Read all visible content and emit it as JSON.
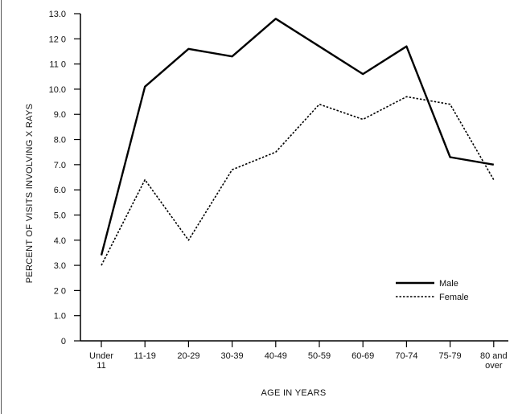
{
  "chart_data": {
    "type": "line",
    "categories": [
      [
        "Under",
        "11"
      ],
      [
        "11-19"
      ],
      [
        "20-29"
      ],
      [
        "30-39"
      ],
      [
        "40-49"
      ],
      [
        "50-59"
      ],
      [
        "60-69"
      ],
      [
        "70-74"
      ],
      [
        "75-79"
      ],
      [
        "80 and",
        "over"
      ]
    ],
    "series": [
      {
        "name": "Male",
        "style": "solid",
        "color": "#000000",
        "values": [
          3.4,
          10.1,
          11.6,
          11.3,
          12.8,
          11.7,
          10.6,
          11.7,
          7.3,
          7.0
        ]
      },
      {
        "name": "Female",
        "style": "dotted",
        "color": "#000000",
        "values": [
          3.0,
          6.4,
          4.0,
          6.8,
          7.5,
          9.4,
          8.8,
          9.7,
          9.4,
          6.4
        ]
      }
    ],
    "xlabel": "AGE IN YEARS",
    "ylabel": "PERCENT OF VISITS INVOLVING X RAYS",
    "ylim": [
      0,
      13
    ],
    "yticks": [
      "0",
      "1.0",
      "2 0",
      "3.0",
      "4.0",
      "5.0",
      "6.0",
      "7.0",
      "8.0",
      "9.0",
      "10.0",
      "11 0",
      "12 0",
      "13.0"
    ],
    "legend_position": "lower-right",
    "grid": false
  }
}
